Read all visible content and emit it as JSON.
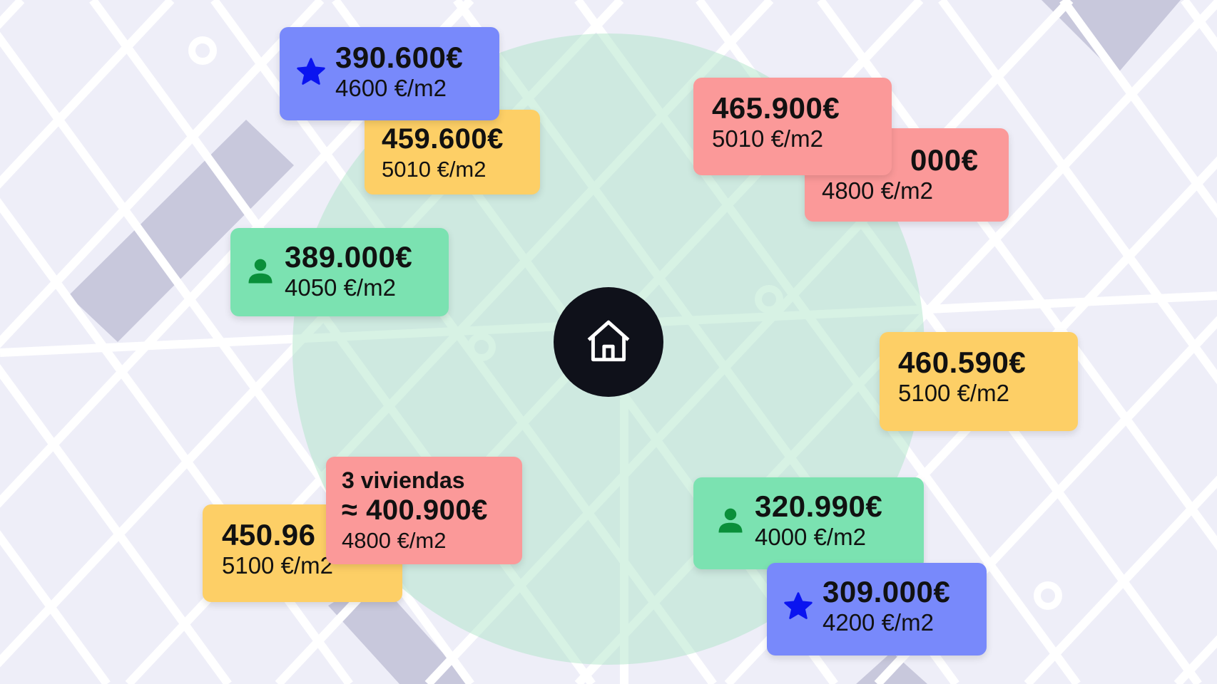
{
  "colors": {
    "background": "#eeeef8",
    "street": "#ffffff",
    "block": "#c8c8dc",
    "radius": "#a6e3c3",
    "blue": "#7889fb",
    "yellow": "#fdcf66",
    "red": "#fb9999",
    "green": "#7be2b1",
    "star": "#0a14f0",
    "person": "#0a8f3a"
  },
  "center": {
    "icon": "home-icon"
  },
  "listings": [
    {
      "price": "390.600€",
      "sqm": "4600 €/m2",
      "color": "blue",
      "icon": "star-icon"
    },
    {
      "price": "459.600€",
      "sqm": "5010 €/m2",
      "color": "yellow"
    },
    {
      "price": "000€",
      "sqm": "4800 €/m2",
      "color": "red"
    },
    {
      "price": "465.900€",
      "sqm": "5010 €/m2",
      "color": "red"
    },
    {
      "price": "389.000€",
      "sqm": "4050 €/m2",
      "color": "green",
      "icon": "person-icon"
    },
    {
      "price": "460.590€",
      "sqm": "5100 €/m2",
      "color": "yellow"
    },
    {
      "price": "450.96",
      "sqm": "5100 €/m2",
      "color": "yellow"
    },
    {
      "heading": "3 viviendas",
      "price": "≈ 400.900€",
      "sqm": "4800 €/m2",
      "color": "red"
    },
    {
      "price": "320.990€",
      "sqm": "4000 €/m2",
      "color": "green",
      "icon": "person-icon"
    },
    {
      "price": "309.000€",
      "sqm": "4200 €/m2",
      "color": "blue",
      "icon": "star-icon"
    }
  ]
}
